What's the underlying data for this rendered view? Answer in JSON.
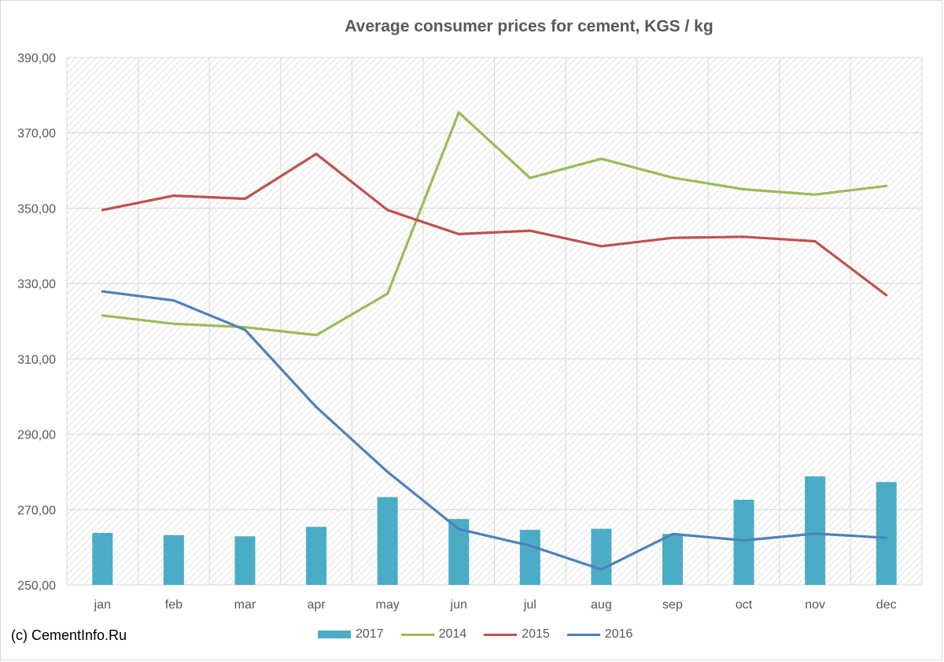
{
  "chart_data": {
    "type": "bar+line",
    "title": "Average consumer prices for cement, KGS / kg",
    "categories": [
      "jan",
      "feb",
      "mar",
      "apr",
      "may",
      "jun",
      "jul",
      "aug",
      "sep",
      "oct",
      "nov",
      "dec"
    ],
    "ylim": [
      250,
      390
    ],
    "yticks": [
      250,
      270,
      290,
      310,
      330,
      350,
      370,
      390
    ],
    "ytick_labels": [
      "250,00",
      "270,00",
      "290,00",
      "310,00",
      "330,00",
      "350,00",
      "370,00",
      "390,00"
    ],
    "grid": true,
    "legend_position": "bottom",
    "series": [
      {
        "name": "2017",
        "kind": "bar",
        "color": "#4bacc6",
        "values": [
          263.8,
          263.2,
          262.9,
          265.4,
          273.3,
          267.5,
          264.6,
          264.9,
          263.5,
          272.6,
          278.8,
          277.3
        ]
      },
      {
        "name": "2014",
        "kind": "line",
        "color": "#9bbb59",
        "values": [
          321.5,
          319.3,
          318.4,
          316.3,
          327.3,
          375.4,
          358.0,
          363.1,
          358.1,
          355.0,
          353.6,
          355.9
        ]
      },
      {
        "name": "2015",
        "kind": "line",
        "color": "#c0504d",
        "values": [
          349.5,
          353.3,
          352.5,
          364.4,
          349.5,
          343.1,
          344.0,
          339.9,
          342.1,
          342.4,
          341.2,
          326.9
        ]
      },
      {
        "name": "2016",
        "kind": "line",
        "color": "#4f81bd",
        "values": [
          327.9,
          325.5,
          317.7,
          297.2,
          280.0,
          264.8,
          260.4,
          254.1,
          263.5,
          261.8,
          263.6,
          262.5
        ]
      }
    ]
  },
  "footer": {
    "credit": "(c) CementInfo.Ru"
  }
}
